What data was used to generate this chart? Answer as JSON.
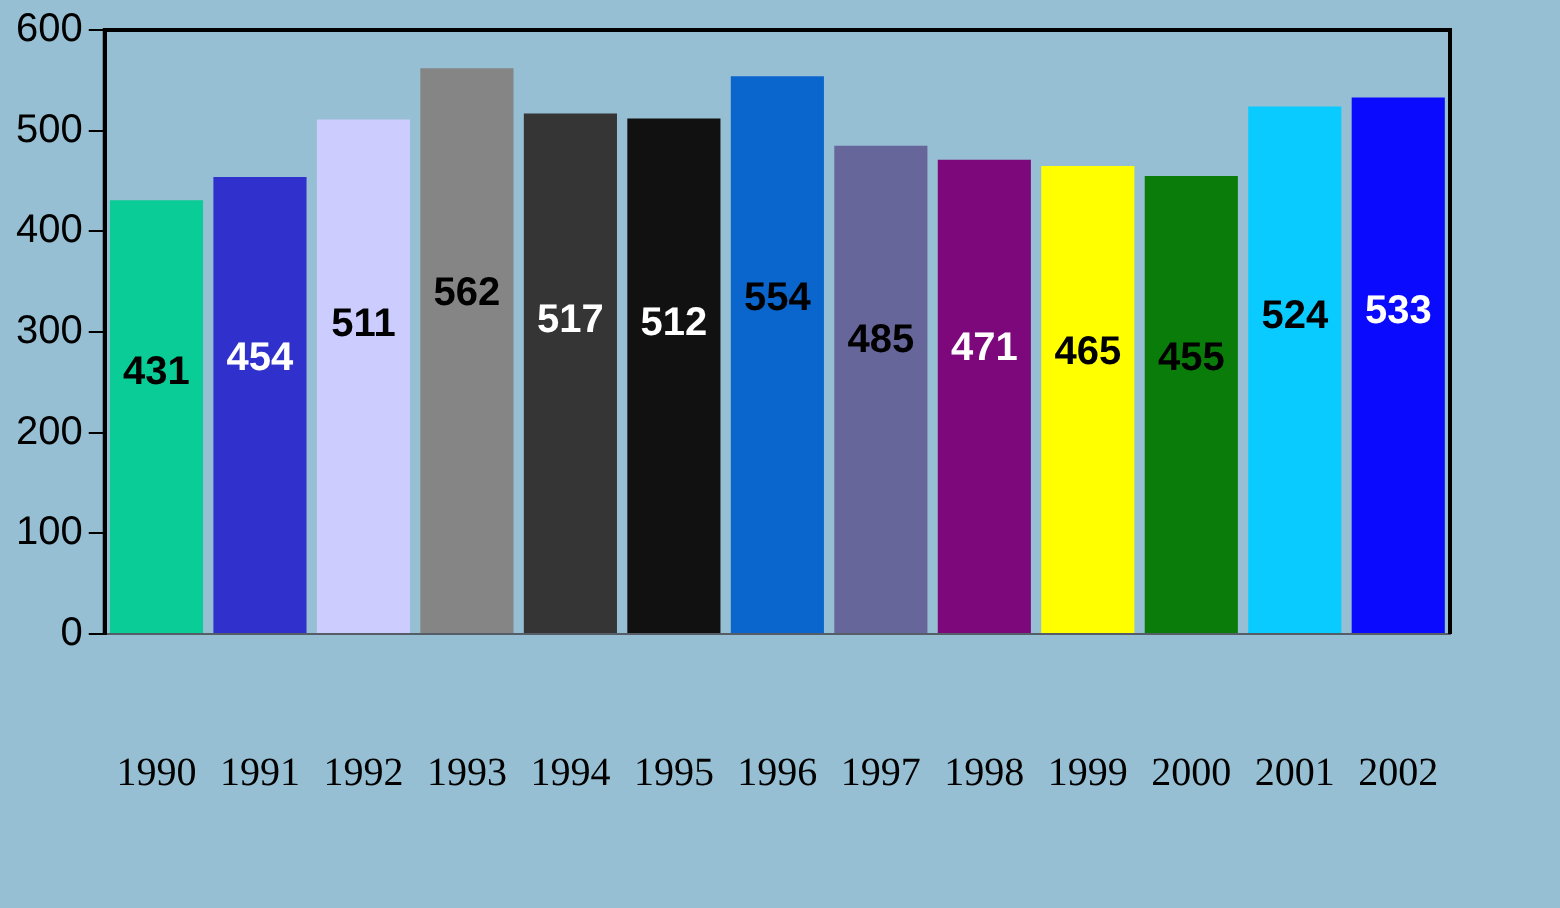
{
  "chart_data": {
    "type": "bar",
    "categories": [
      "1990",
      "1991",
      "1992",
      "1993",
      "1994",
      "1995",
      "1996",
      "1997",
      "1998",
      "1999",
      "2000",
      "2001",
      "2002"
    ],
    "values": [
      431,
      454,
      511,
      562,
      517,
      512,
      554,
      485,
      471,
      465,
      455,
      524,
      533
    ],
    "colors": [
      "#0acc96",
      "#3030cc",
      "#ccccff",
      "#858585",
      "#353535",
      "#111111",
      "#0a66cc",
      "#67669a",
      "#7c087c",
      "#ffff00",
      "#0a7c0a",
      "#0acbff",
      "#0a0aff"
    ],
    "ylim": [
      0,
      600
    ],
    "yticks": [
      0,
      100,
      200,
      300,
      400,
      500,
      600
    ],
    "grid": false,
    "data_labels": true
  }
}
